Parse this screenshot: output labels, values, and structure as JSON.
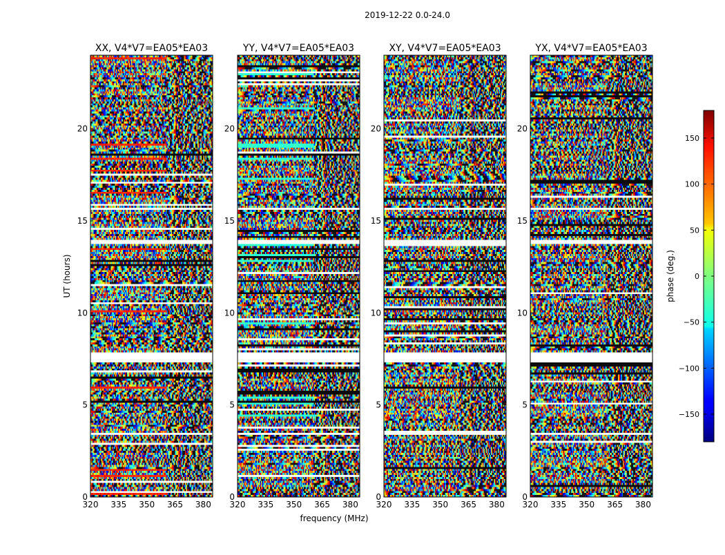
{
  "figure": {
    "suptitle": "2019-12-22 0.0-24.0",
    "colormap": "jet"
  },
  "chart_data": {
    "type": "heatmap",
    "xlabel": "frequency (MHz)",
    "ylabel": "UT (hours)",
    "xlim": [
      320,
      385
    ],
    "ylim": [
      0,
      24
    ],
    "xticks": [
      320,
      335,
      350,
      365,
      380
    ],
    "yticks": [
      0,
      5,
      10,
      15,
      20
    ],
    "panels": [
      {
        "title": "XX, V4*V7=EA05*EA03",
        "pol": "XX"
      },
      {
        "title": "YY, V4*V7=EA05*EA03",
        "pol": "YY"
      },
      {
        "title": "XY, V4*V7=EA05*EA03",
        "pol": "XY"
      },
      {
        "title": "YX, V4*V7=EA05*EA03",
        "pol": "YX"
      }
    ],
    "flagged_ut_hours": [
      [
        7.3,
        7.85
      ],
      [
        13.7,
        13.95
      ],
      [
        15.6,
        15.75
      ],
      [
        3.3,
        3.4
      ]
    ],
    "colorbar": {
      "label": "phase (deg.)",
      "range": [
        -180,
        180
      ],
      "ticks": [
        150,
        100,
        50,
        0,
        -50,
        -100,
        -150
      ],
      "tick_labels": [
        "150",
        "100",
        "50",
        "0",
        "−50",
        "−100",
        "−150"
      ]
    }
  }
}
